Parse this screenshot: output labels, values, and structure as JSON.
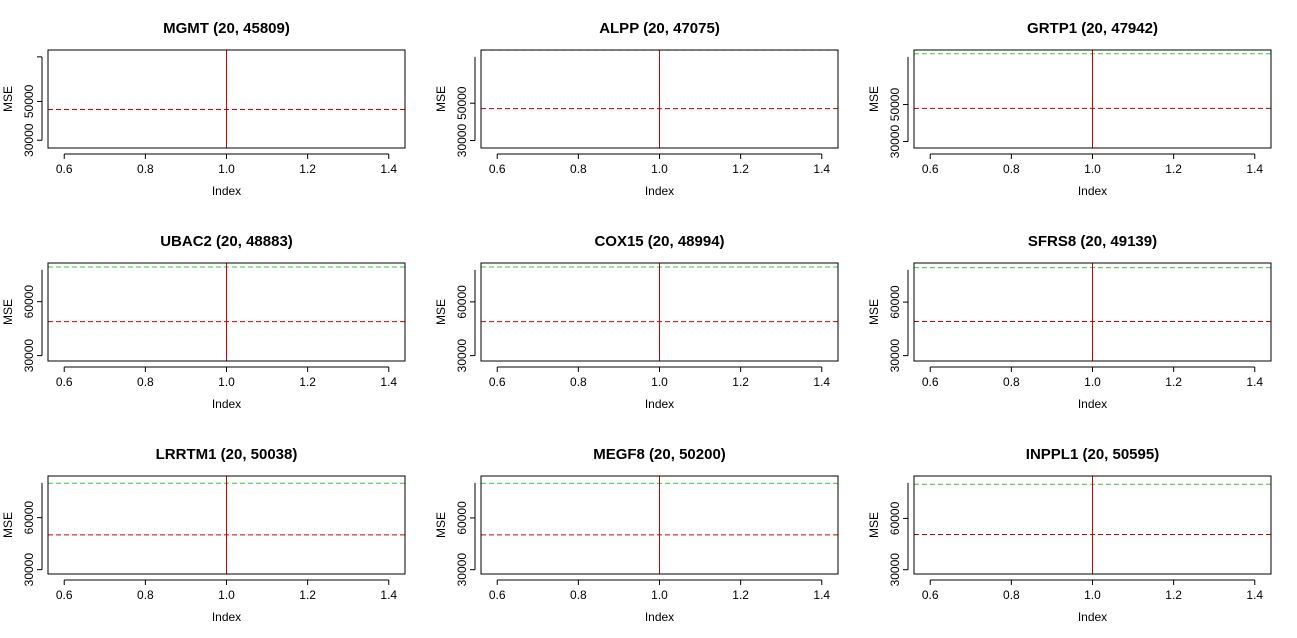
{
  "colors": {
    "vline": "#cc0000",
    "red_dash": "#cc0000",
    "green_dash": "#33cc33",
    "axis": "#000000"
  },
  "chart_data": [
    {
      "type": "line",
      "title": "MGMT (20, 45809)",
      "xlabel": "Index",
      "ylabel": "MSE",
      "xlim": [
        0.56,
        1.44
      ],
      "ylim": [
        26000,
        76500
      ],
      "xticks": [
        "0.6",
        "0.8",
        "1.0",
        "1.2",
        "1.4"
      ],
      "yticks": [
        "30000",
        "50000"
      ],
      "vline_x": 1.0,
      "red_dashed_y": 45809,
      "green_dashed_y": null
    },
    {
      "type": "line",
      "title": "ALPP (20, 47075)",
      "xlabel": "Index",
      "ylabel": "MSE",
      "xlim": [
        0.56,
        1.44
      ],
      "ylim": [
        26000,
        78500
      ],
      "xticks": [
        "0.6",
        "0.8",
        "1.0",
        "1.2",
        "1.4"
      ],
      "yticks": [
        "30000",
        "50000"
      ],
      "vline_x": 1.0,
      "red_dashed_y": 47075,
      "green_dashed_y": 78400
    },
    {
      "type": "line",
      "title": "GRTP1 (20, 47942)",
      "xlabel": "Index",
      "ylabel": "MSE",
      "xlim": [
        0.56,
        1.44
      ],
      "ylim": [
        26500,
        79500
      ],
      "xticks": [
        "0.6",
        "0.8",
        "1.0",
        "1.2",
        "1.4"
      ],
      "yticks": [
        "30000",
        "50000"
      ],
      "vline_x": 1.0,
      "red_dashed_y": 47942,
      "green_dashed_y": 77500
    },
    {
      "type": "line",
      "title": "UBAC2 (20, 48883)",
      "xlabel": "Index",
      "ylabel": "MSE",
      "xlim": [
        0.56,
        1.44
      ],
      "ylim": [
        27000,
        81500
      ],
      "xticks": [
        "0.6",
        "0.8",
        "1.0",
        "1.2",
        "1.4"
      ],
      "yticks": [
        "30000",
        "60000"
      ],
      "vline_x": 1.0,
      "red_dashed_y": 48883,
      "green_dashed_y": 79300
    },
    {
      "type": "line",
      "title": "COX15 (20, 48994)",
      "xlabel": "Index",
      "ylabel": "MSE",
      "xlim": [
        0.56,
        1.44
      ],
      "ylim": [
        27000,
        81700
      ],
      "xticks": [
        "0.6",
        "0.8",
        "1.0",
        "1.2",
        "1.4"
      ],
      "yticks": [
        "30000",
        "60000"
      ],
      "vline_x": 1.0,
      "red_dashed_y": 48994,
      "green_dashed_y": 79500
    },
    {
      "type": "line",
      "title": "SFRS8 (20, 49139)",
      "xlabel": "Index",
      "ylabel": "MSE",
      "xlim": [
        0.56,
        1.44
      ],
      "ylim": [
        27000,
        81900
      ],
      "xticks": [
        "0.6",
        "0.8",
        "1.0",
        "1.2",
        "1.4"
      ],
      "yticks": [
        "30000",
        "60000"
      ],
      "vline_x": 1.0,
      "red_dashed_y": 49139,
      "green_dashed_y": 79300
    },
    {
      "type": "line",
      "title": "LRRTM1 (20, 50038)",
      "xlabel": "Index",
      "ylabel": "MSE",
      "xlim": [
        0.56,
        1.44
      ],
      "ylim": [
        27500,
        84000
      ],
      "xticks": [
        "0.6",
        "0.8",
        "1.0",
        "1.2",
        "1.4"
      ],
      "yticks": [
        "30000",
        "60000"
      ],
      "vline_x": 1.0,
      "red_dashed_y": 50038,
      "green_dashed_y": 79800
    },
    {
      "type": "line",
      "title": "MEGF8 (20, 50200)",
      "xlabel": "Index",
      "ylabel": "MSE",
      "xlim": [
        0.56,
        1.44
      ],
      "ylim": [
        27500,
        84300
      ],
      "xticks": [
        "0.6",
        "0.8",
        "1.0",
        "1.2",
        "1.4"
      ],
      "yticks": [
        "30000",
        "60000"
      ],
      "vline_x": 1.0,
      "red_dashed_y": 50200,
      "green_dashed_y": 80000
    },
    {
      "type": "line",
      "title": "INPPL1 (20, 50595)",
      "xlabel": "Index",
      "ylabel": "MSE",
      "xlim": [
        0.56,
        1.44
      ],
      "ylim": [
        27500,
        84800
      ],
      "xticks": [
        "0.6",
        "0.8",
        "1.0",
        "1.2",
        "1.4"
      ],
      "yticks": [
        "30000",
        "60000"
      ],
      "vline_x": 1.0,
      "red_dashed_y": 50595,
      "green_dashed_y": 80000
    }
  ]
}
